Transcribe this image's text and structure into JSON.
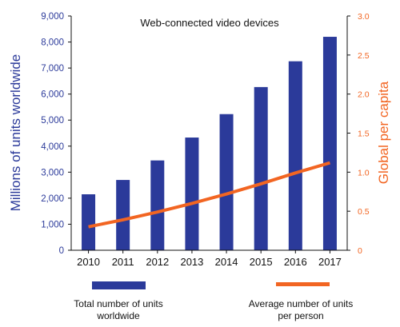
{
  "chart_data": {
    "type": "bar",
    "title": "Web-connected video devices",
    "categories": [
      "2010",
      "2011",
      "2012",
      "2013",
      "2014",
      "2015",
      "2016",
      "2017"
    ],
    "series": [
      {
        "name": "Total number of units worldwide",
        "type": "bar",
        "axis": "left",
        "color": "#2b3a9a",
        "values": [
          2150,
          2700,
          3450,
          4330,
          5230,
          6270,
          7260,
          8200
        ]
      },
      {
        "name": "Average number of units per person",
        "type": "line",
        "axis": "right",
        "color": "#f26522",
        "values": [
          0.3,
          0.39,
          0.49,
          0.6,
          0.72,
          0.85,
          0.99,
          1.12
        ]
      }
    ],
    "ylabel": "Millions of units worldwide",
    "ylabel_right": "Global per capita",
    "ylim": [
      0,
      9000
    ],
    "ylim_right": [
      0,
      3.0
    ],
    "yticks": [
      "0",
      "1,000",
      "2,000",
      "3,000",
      "4,000",
      "5,000",
      "6,000",
      "7,000",
      "8,000",
      "9,000"
    ],
    "yticks_right": [
      "0",
      "0.5",
      "1.0",
      "1.5",
      "2.0",
      "2.5",
      "3.0"
    ],
    "legend": {
      "position": "bottom",
      "items": [
        {
          "line1": "Total number of units",
          "line2": "worldwide"
        },
        {
          "line1": "Average number of units",
          "line2": "per person"
        }
      ]
    },
    "grid": false
  }
}
